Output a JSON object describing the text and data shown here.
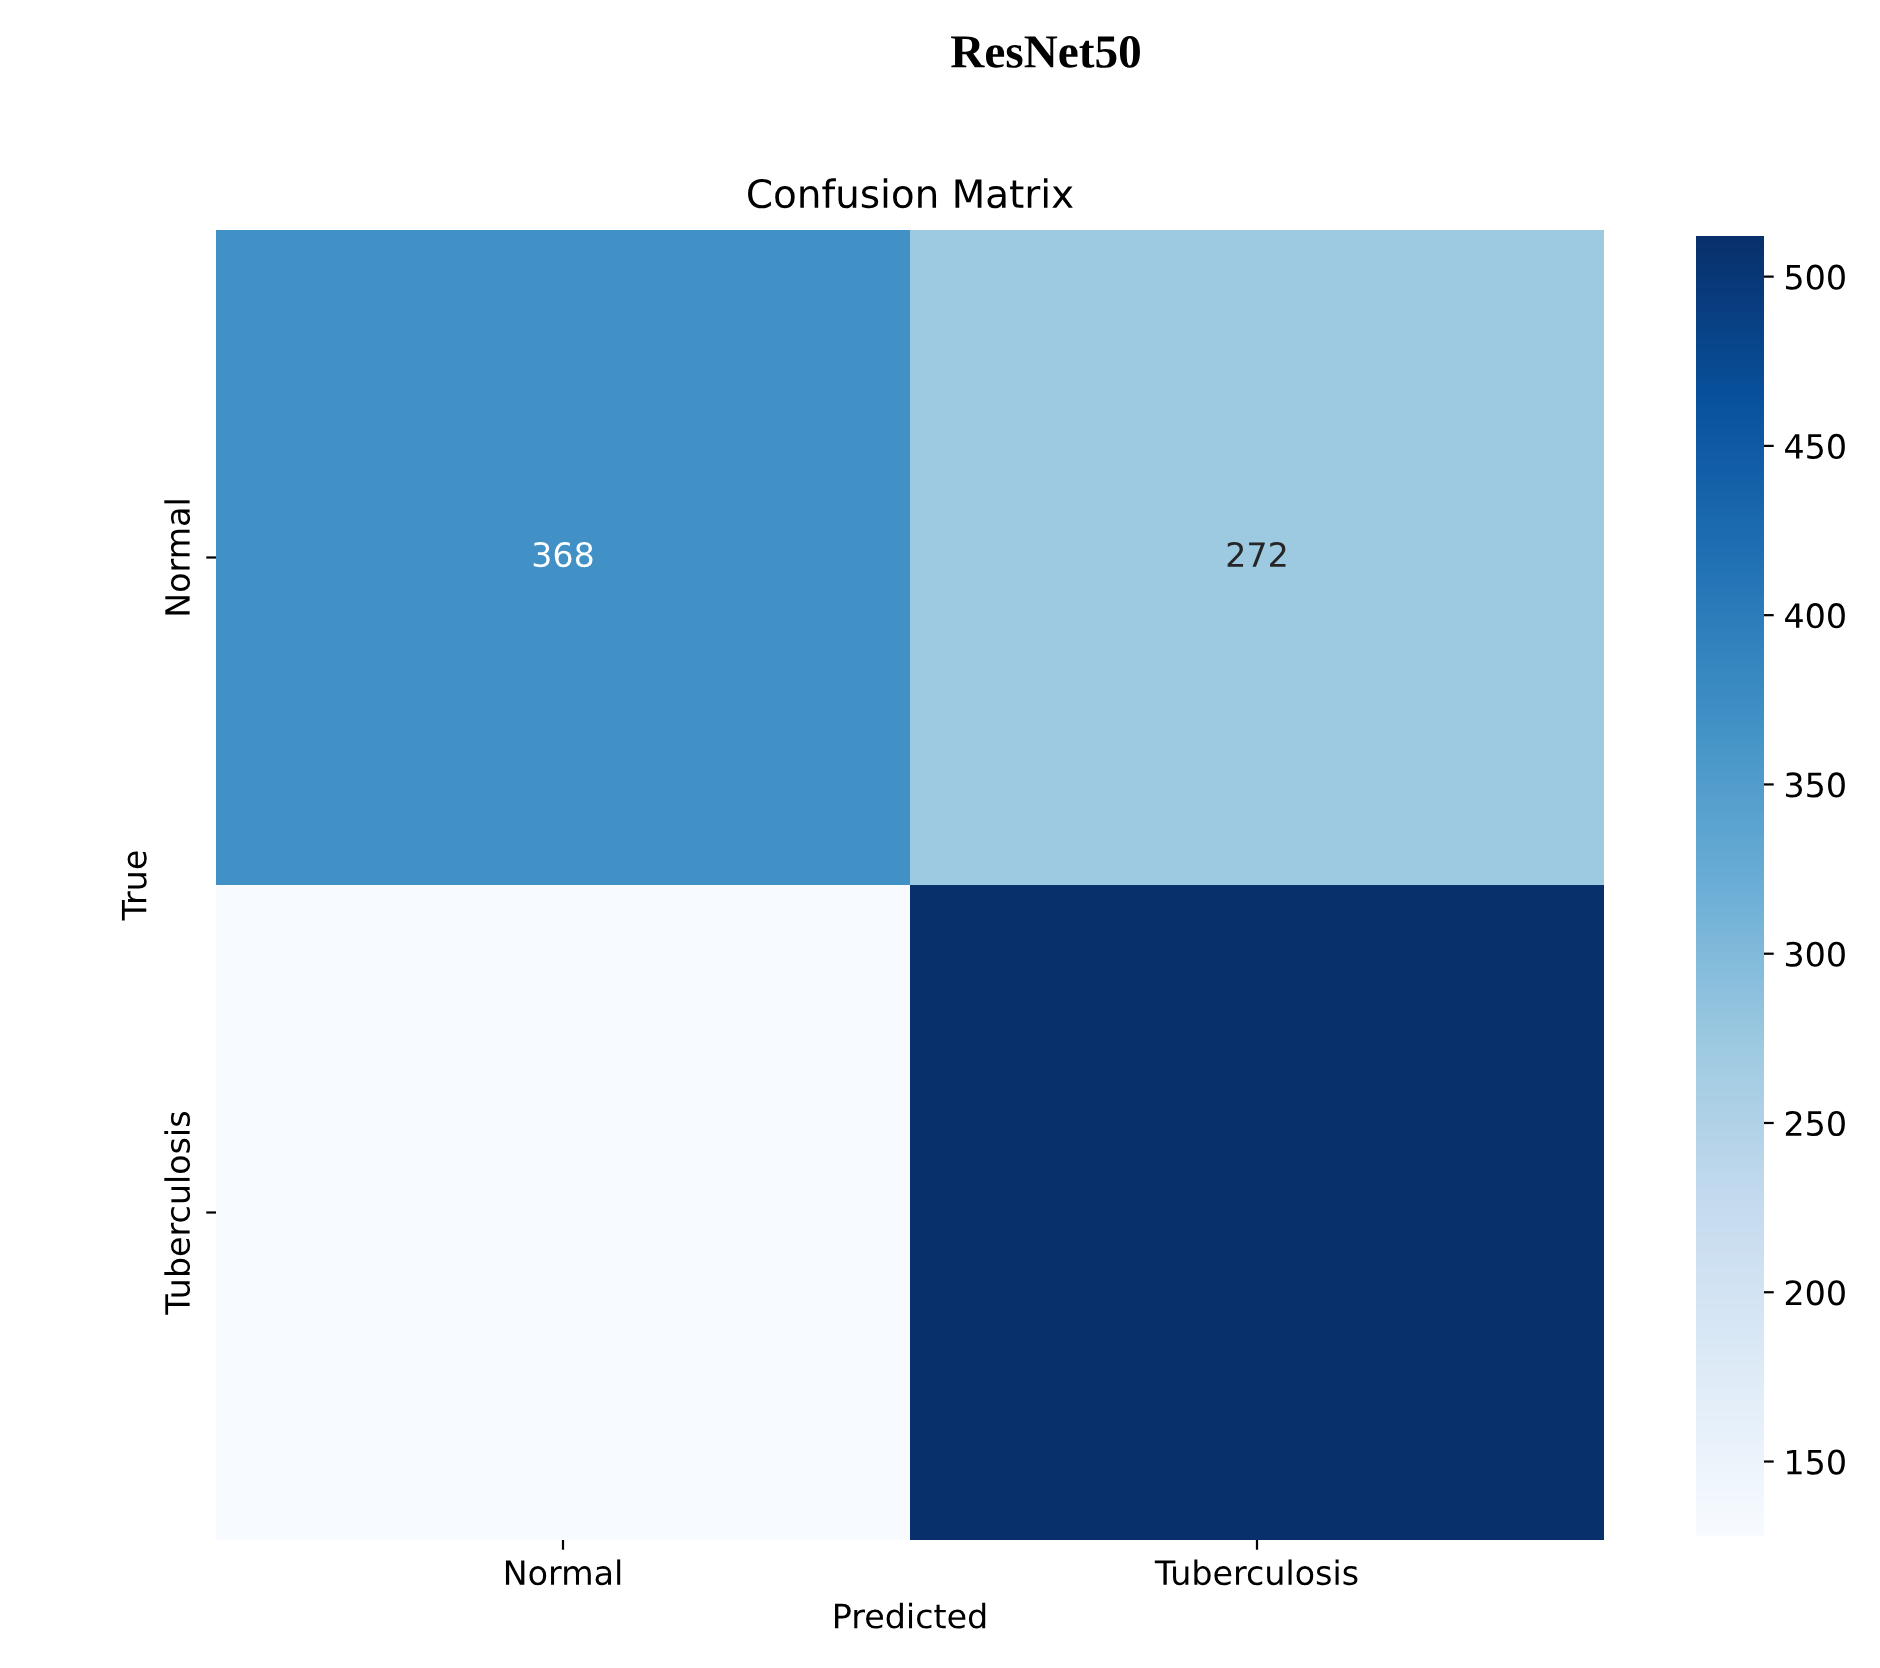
{
  "chart_data": {
    "type": "heatmap",
    "title": "ResNet50",
    "subtitle": "Confusion Matrix",
    "xlabel": "Predicted",
    "ylabel": "True",
    "categories": [
      "Normal",
      "Tuberculosis"
    ],
    "y_categories": [
      "Normal",
      "Tuberculosis"
    ],
    "cells": [
      [
        368,
        272
      ],
      [
        128,
        512
      ]
    ],
    "cell_labels": [
      [
        "368",
        "272"
      ],
      [
        null,
        null
      ]
    ],
    "clim": [
      128,
      512
    ],
    "cticks": [
      150,
      200,
      250,
      300,
      350,
      400,
      450,
      500
    ]
  }
}
